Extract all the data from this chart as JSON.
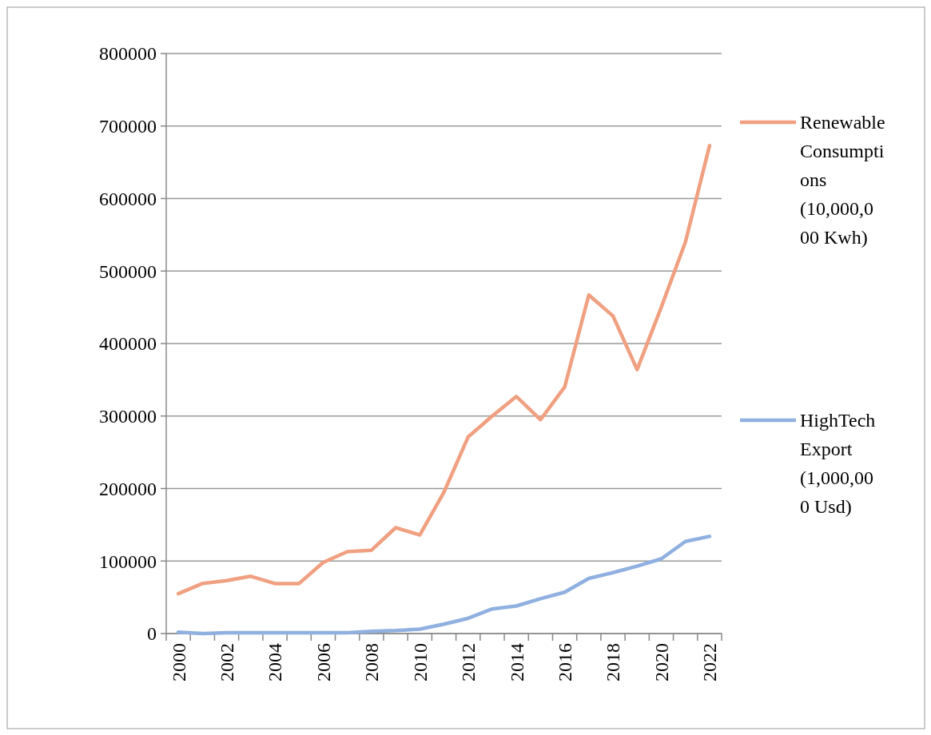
{
  "chart_data": {
    "type": "line",
    "categories": [
      "2000",
      null,
      "2002",
      null,
      "2004",
      null,
      "2006",
      null,
      "2008",
      null,
      "2010",
      null,
      "2012",
      null,
      "2014",
      null,
      "2016",
      null,
      "2018",
      null,
      "2020",
      null,
      "2022"
    ],
    "series": [
      {
        "name": "Renewable Consumptions (10,000,000 Kwh)",
        "color": "#f0a080",
        "values": [
          55000,
          69000,
          73000,
          79000,
          69000,
          69000,
          98000,
          113000,
          115000,
          146000,
          136000,
          195000,
          271000,
          300000,
          327000,
          295000,
          340000,
          467000,
          438000,
          364000,
          450000,
          540000,
          673000
        ]
      },
      {
        "name": "HighTech Export (1,000,000 Usd)",
        "color": "#8fb0e0",
        "values": [
          2000,
          0,
          1000,
          1000,
          1000,
          1000,
          1000,
          1000,
          3000,
          4000,
          6000,
          13000,
          21000,
          34000,
          38000,
          48000,
          57000,
          76000,
          84000,
          93000,
          103000,
          127000,
          134000
        ]
      }
    ],
    "ylim": [
      0,
      800000
    ],
    "yticks": [
      0,
      100000,
      200000,
      300000,
      400000,
      500000,
      600000,
      700000,
      800000
    ],
    "grid": "y",
    "legend": "right",
    "marker": "none",
    "line_style": "solid"
  }
}
